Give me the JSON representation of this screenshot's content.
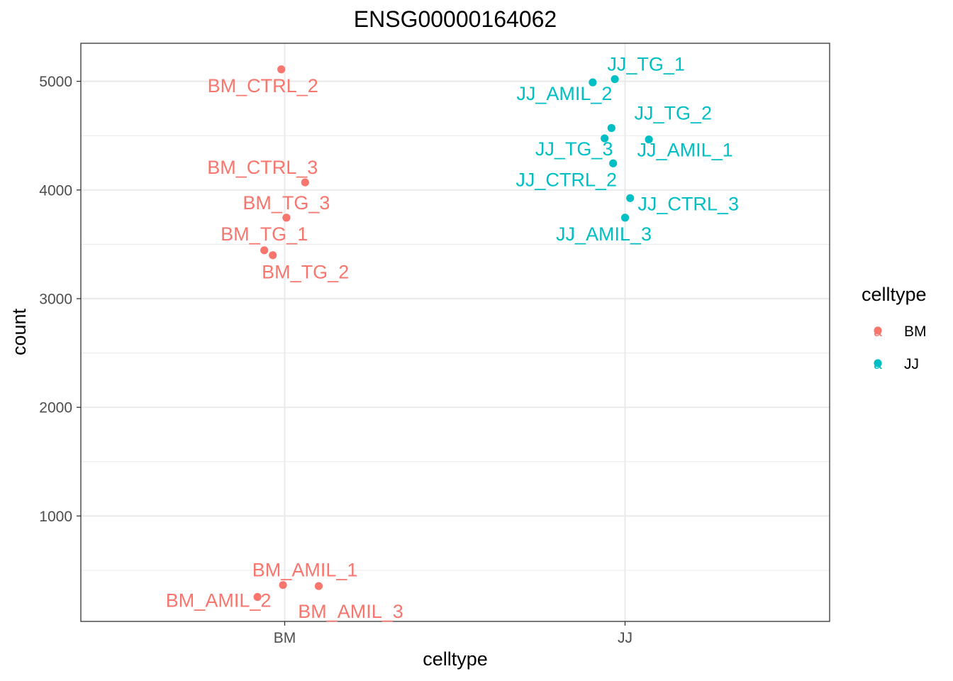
{
  "chart_data": {
    "type": "scatter",
    "title": "ENSG00000164062",
    "xlabel": "celltype",
    "ylabel": "count",
    "categories": [
      "BM",
      "JJ"
    ],
    "ylim": [
      30,
      5350
    ],
    "yticks": [
      1000,
      2000,
      3000,
      4000,
      5000
    ],
    "grid": true,
    "legend": {
      "title": "celltype",
      "position": "right",
      "entries": [
        {
          "name": "BM",
          "color": "#F8766D"
        },
        {
          "name": "JJ",
          "color": "#00BFC4"
        }
      ]
    },
    "series": [
      {
        "name": "BM",
        "color": "#F8766D",
        "points": [
          {
            "label": "BM_CTRL_2",
            "category": "BM",
            "jitter": -0.01,
            "y": 5110
          },
          {
            "label": "BM_CTRL_3",
            "category": "BM",
            "jitter": 0.06,
            "y": 4070
          },
          {
            "label": "BM_TG_3",
            "category": "BM",
            "jitter": 0.005,
            "y": 3745
          },
          {
            "label": "BM_TG_1",
            "category": "BM",
            "jitter": -0.06,
            "y": 3445
          },
          {
            "label": "BM_TG_2",
            "category": "BM",
            "jitter": -0.035,
            "y": 3400
          },
          {
            "label": "BM_AMIL_1",
            "category": "BM",
            "jitter": -0.005,
            "y": 365
          },
          {
            "label": "BM_AMIL_2",
            "category": "BM",
            "jitter": -0.08,
            "y": 255
          },
          {
            "label": "BM_AMIL_3",
            "category": "BM",
            "jitter": 0.1,
            "y": 355
          }
        ]
      },
      {
        "name": "JJ",
        "color": "#00BFC4",
        "points": [
          {
            "label": "JJ_TG_1",
            "category": "JJ",
            "jitter": -0.03,
            "y": 5020
          },
          {
            "label": "JJ_AMIL_2",
            "category": "JJ",
            "jitter": -0.095,
            "y": 4990
          },
          {
            "label": "JJ_TG_2",
            "category": "JJ",
            "jitter": -0.04,
            "y": 4570
          },
          {
            "label": "JJ_TG_3",
            "category": "JJ",
            "jitter": -0.06,
            "y": 4475
          },
          {
            "label": "JJ_AMIL_1",
            "category": "JJ",
            "jitter": 0.07,
            "y": 4465
          },
          {
            "label": "JJ_CTRL_2",
            "category": "JJ",
            "jitter": -0.035,
            "y": 4245
          },
          {
            "label": "JJ_CTRL_3",
            "category": "JJ",
            "jitter": 0.015,
            "y": 3925
          },
          {
            "label": "JJ_AMIL_3",
            "category": "JJ",
            "jitter": 0.0,
            "y": 3745
          }
        ]
      }
    ]
  }
}
